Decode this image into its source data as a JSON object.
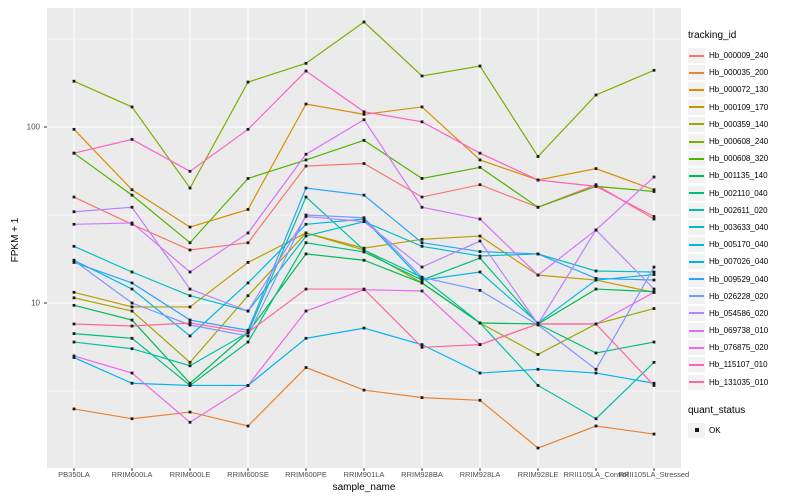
{
  "chart_data": {
    "type": "line",
    "title": "",
    "xlabel": "sample_name",
    "ylabel": "FPKM + 1",
    "y_scale": "log10",
    "y_ticks": [
      100,
      10
    ],
    "y_minor_ticks": [
      316.2,
      31.62,
      3.162
    ],
    "grid": true,
    "legend_position": "right",
    "panel_background": "#EBEBEB",
    "grid_color": "#FFFFFF",
    "point_marker": "black-square",
    "point_color": "#1a1a1a",
    "categories": [
      "PB350LA",
      "RRIM600LA",
      "RRIM600LE",
      "RRIM600SE",
      "RRIM600PE",
      "RRIM901LA",
      "RRIM928BA",
      "RRIM928LA",
      "RRIM928LE",
      "RRII105LA_Control",
      "RRII105LA_Stressed"
    ],
    "series": [
      {
        "name": "Hb_000009_240",
        "color": "#F8766D",
        "values": [
          40,
          28,
          20,
          22,
          60,
          62,
          40,
          47,
          35,
          47,
          30
        ]
      },
      {
        "name": "Hb_000035_200",
        "color": "#EA8331",
        "values": [
          2.5,
          2.2,
          2.4,
          2.0,
          4.3,
          3.2,
          2.9,
          2.8,
          1.5,
          2.0,
          1.8
        ]
      },
      {
        "name": "Hb_000072_130",
        "color": "#D89000",
        "values": [
          97,
          44,
          27,
          34,
          135,
          118,
          130,
          65,
          50,
          58,
          44
        ]
      },
      {
        "name": "Hb_000109_170",
        "color": "#C09B00",
        "values": [
          11.5,
          9.5,
          9.5,
          17,
          25,
          20.5,
          23,
          24,
          14.4,
          13.5,
          11.5
        ]
      },
      {
        "name": "Hb_000359_140",
        "color": "#A3A500",
        "values": [
          10.7,
          9,
          4.6,
          11,
          25,
          20,
          13,
          7.7,
          5.1,
          7.6,
          9.3
        ]
      },
      {
        "name": "Hb_000608_240",
        "color": "#7CAE00",
        "values": [
          182,
          130,
          45,
          180,
          230,
          395,
          195,
          222,
          68,
          152,
          210
        ]
      },
      {
        "name": "Hb_000608_320",
        "color": "#4EB400",
        "values": [
          71,
          41,
          22,
          51,
          65,
          84,
          51,
          59,
          35,
          46,
          43
        ]
      },
      {
        "name": "Hb_001135_140",
        "color": "#00BB4E",
        "values": [
          9.7,
          8,
          3.5,
          6.8,
          19,
          17.5,
          13,
          7.7,
          7.6,
          12,
          11.6
        ]
      },
      {
        "name": "Hb_002110_040",
        "color": "#00BF7D",
        "values": [
          6.7,
          6.3,
          3.4,
          6.0,
          22,
          19.5,
          13.5,
          18,
          7.6,
          5.2,
          6.0
        ]
      },
      {
        "name": "Hb_002611_020",
        "color": "#00C1A3",
        "values": [
          6.0,
          5.5,
          4.4,
          6.8,
          40,
          20,
          14,
          7.7,
          3.4,
          2.2,
          4.6
        ]
      },
      {
        "name": "Hb_003633_040",
        "color": "#00BFC4",
        "values": [
          21,
          15,
          11,
          9,
          24,
          29,
          21,
          18.5,
          19,
          15.2,
          15
        ]
      },
      {
        "name": "Hb_005170_040",
        "color": "#00BAE0",
        "values": [
          17.5,
          12,
          6.5,
          13,
          28,
          30,
          13.5,
          15,
          7.7,
          13.5,
          14.5
        ]
      },
      {
        "name": "Hb_007026_040",
        "color": "#00B2F3",
        "values": [
          4.9,
          3.5,
          3.4,
          3.4,
          6.3,
          7.2,
          5.8,
          4.0,
          4.2,
          4.0,
          3.5
        ]
      },
      {
        "name": "Hb_009529_040",
        "color": "#29A3FF",
        "values": [
          17,
          13,
          8,
          7,
          45,
          41,
          22,
          19.6,
          19,
          13.8,
          13.5
        ]
      },
      {
        "name": "Hb_026228_020",
        "color": "#7F96FF",
        "values": [
          17.4,
          10,
          7.5,
          6.5,
          31.6,
          30.5,
          14,
          11.8,
          7.5,
          4.2,
          16
        ]
      },
      {
        "name": "Hb_054586_020",
        "color": "#B983FF",
        "values": [
          33,
          35,
          12,
          9,
          31,
          29,
          16,
          22.5,
          7.6,
          26,
          12
        ]
      },
      {
        "name": "Hb_069738_010",
        "color": "#D873FC",
        "values": [
          28,
          28.5,
          15,
          25,
          70,
          110,
          35,
          30,
          14.4,
          26,
          52
        ]
      },
      {
        "name": "Hb_076875_020",
        "color": "#EF67EB",
        "values": [
          5.0,
          4.0,
          2.1,
          3.4,
          9,
          11.9,
          11.7,
          5.8,
          7.6,
          7.6,
          11.5
        ]
      },
      {
        "name": "Hb_115107_010",
        "color": "#FF61C7",
        "values": [
          71,
          85,
          56,
          97,
          208,
          122,
          107,
          71,
          50,
          46,
          31
        ]
      },
      {
        "name": "Hb_131035_010",
        "color": "#FF689E",
        "values": [
          7.6,
          7.4,
          7.7,
          6.8,
          12,
          12,
          5.6,
          5.8,
          7.6,
          7.6,
          3.4
        ]
      }
    ]
  },
  "legend": {
    "tracking_title": "tracking_id",
    "quant_title": "quant_status",
    "quant_items": [
      "OK"
    ]
  }
}
